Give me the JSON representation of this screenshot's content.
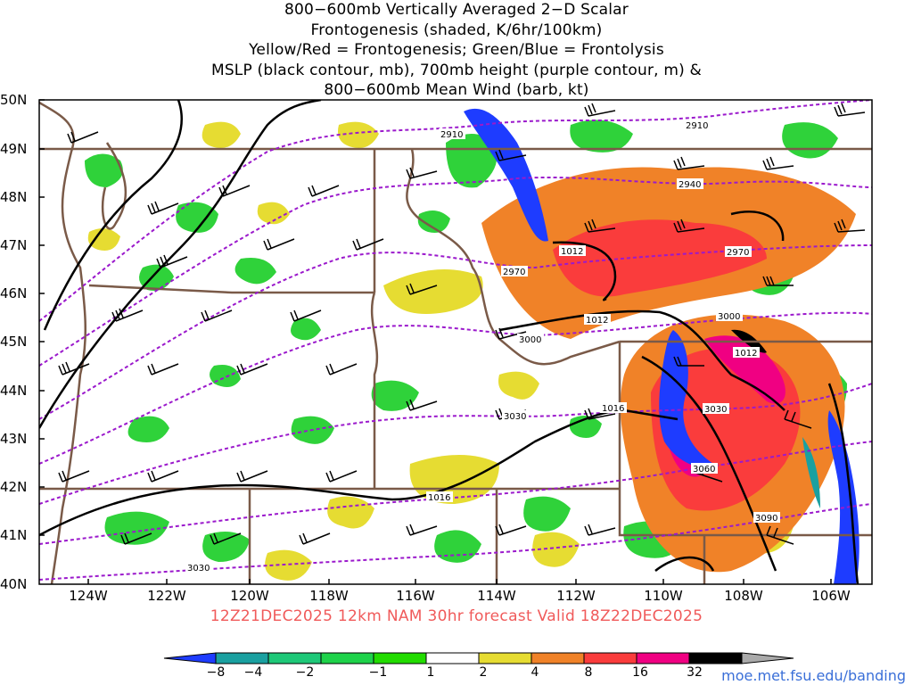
{
  "title_lines": [
    "800−600mb Vertically Averaged 2−D Scalar",
    "Frontogenesis (shaded, K/6hr/100km)",
    "Yellow/Red = Frontogenesis;  Green/Blue = Frontolysis",
    "MSLP (black contour, mb), 700mb height (purple contour, m) &",
    "800−600mb Mean Wind (barb, kt)"
  ],
  "lat_labels": [
    "50N",
    "49N",
    "48N",
    "47N",
    "46N",
    "45N",
    "44N",
    "43N",
    "42N",
    "41N",
    "40N"
  ],
  "lon_labels": [
    "124W",
    "122W",
    "120W",
    "118W",
    "116W",
    "114W",
    "112W",
    "110W",
    "108W",
    "106W"
  ],
  "contour_labels": {
    "height_m": [
      "2910",
      "2910",
      "2940",
      "2970",
      "2970",
      "3000",
      "3000",
      "3030",
      "3030",
      "3060",
      "3090",
      "3030"
    ],
    "mslp_mb": [
      "1012",
      "1012",
      "1012",
      "1016",
      "1016"
    ]
  },
  "forecast_caption": "12Z21DEC2025 12km NAM 30hr forecast Valid 18Z22DEC2025",
  "colorbar": {
    "labels": [
      "−8",
      "−4",
      "−2",
      "−1",
      "1",
      "2",
      "4",
      "8",
      "16",
      "32"
    ],
    "colors": [
      "#1e3cff",
      "#1aa0a0",
      "#1ec878",
      "#1ed24a",
      "#22dc00",
      "#ffffff",
      "#e6dc32",
      "#f08228",
      "#fa3c3c",
      "#f00082",
      "#000000",
      "#aaaaaa"
    ]
  },
  "colors": {
    "mslp_contour": "#000000",
    "height_contour": "#9b19cc",
    "boundaries": "#7a5a48",
    "wind_barbs": "#000000",
    "caption": "#f05a5a",
    "url": "#3a6fd8"
  },
  "site_url": "moe.met.fsu.edu/banding"
}
